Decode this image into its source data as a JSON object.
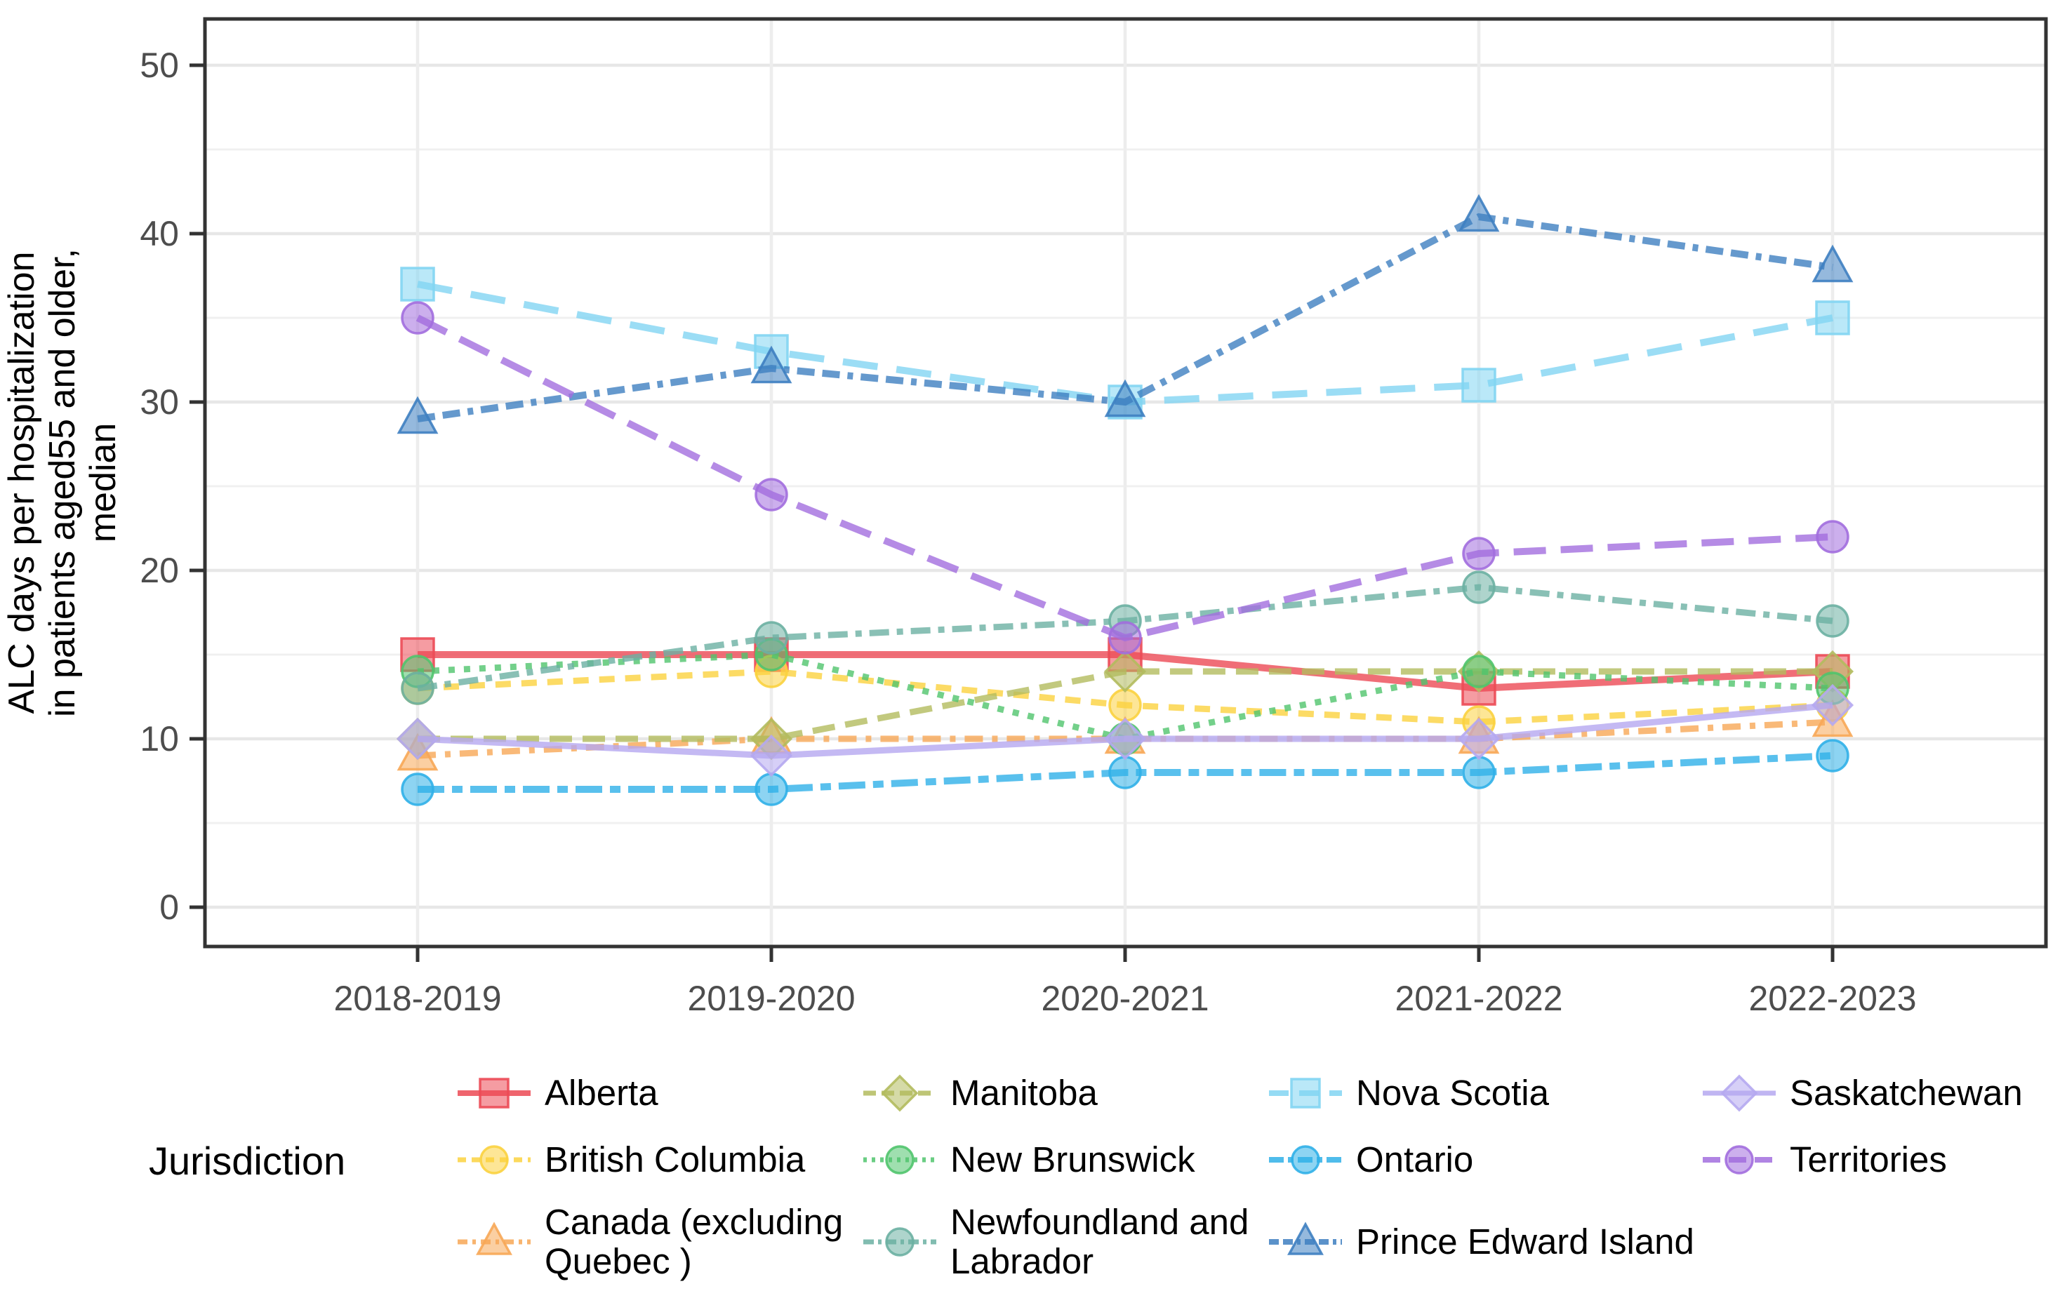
{
  "chart_data": {
    "type": "line",
    "title": "",
    "ylabel_lines": [
      "ALC days per hospitalization",
      "in patients aged55 and older,",
      "median"
    ],
    "xlabel": "",
    "legend_title": "Jurisdiction",
    "categories": [
      "2018-2019",
      "2019-2020",
      "2020-2021",
      "2021-2022",
      "2022-2023"
    ],
    "y_major_ticks": [
      0,
      10,
      20,
      30,
      40,
      50
    ],
    "y_minor_ticks": [
      5,
      15,
      25,
      35,
      45
    ],
    "ylim": [
      -2.3,
      52.8
    ],
    "grid": "on",
    "legend_position": "bottom",
    "series": [
      {
        "name": "Alberta",
        "legend_label": "Alberta",
        "color": "#ec4a55",
        "dash": "",
        "line_width": 10,
        "marker": "square",
        "values": [
          15,
          15,
          15,
          13,
          14
        ]
      },
      {
        "name": "British Columbia",
        "legend_label": "British Columbia",
        "color": "#fbd23f",
        "dash": "22 15",
        "line_width": 9,
        "marker": "circle",
        "values": [
          13,
          14,
          12,
          11,
          12
        ]
      },
      {
        "name": "Canada (excluding Quebec)",
        "legend_label": "Canada  (excluding\nQuebec )",
        "color": "#f7a756",
        "dash": "26 13 8 13",
        "line_width": 9,
        "marker": "triangle",
        "values": [
          9,
          10,
          10,
          10,
          11
        ]
      },
      {
        "name": "Manitoba",
        "legend_label": "Manitoba",
        "color": "#b3bb5e",
        "dash": "32 15",
        "line_width": 9,
        "marker": "diamond",
        "values": [
          10,
          10,
          14,
          14,
          14
        ]
      },
      {
        "name": "New Brunswick",
        "legend_label": "New Brunswick",
        "color": "#50c46d",
        "dash": "9 13",
        "line_width": 9,
        "marker": "circle",
        "values": [
          14,
          15,
          10,
          14,
          13
        ]
      },
      {
        "name": "Newfoundland and Labrador",
        "legend_label": "Newfoundland and\nLabrador",
        "color": "#6bb0a2",
        "dash": "28 11 9 11",
        "line_width": 9,
        "marker": "circle",
        "values": [
          13,
          16,
          17,
          19,
          17
        ]
      },
      {
        "name": "Nova Scotia",
        "legend_label": "Nova Scotia",
        "color": "#82d5f2",
        "dash": "50 27",
        "line_width": 10,
        "marker": "square",
        "values": [
          37,
          33,
          30,
          31,
          35
        ]
      },
      {
        "name": "Ontario",
        "legend_label": "Ontario",
        "color": "#30b0e8",
        "dash": "38 11 15 11",
        "line_width": 10,
        "marker": "circle",
        "values": [
          7,
          7,
          8,
          8,
          9
        ]
      },
      {
        "name": "Prince Edward Island",
        "legend_label": "Prince Edward Island",
        "color": "#3e7fc1",
        "dash": "25 11 25 11 8 11",
        "line_width": 10,
        "marker": "triangle",
        "values": [
          29,
          32,
          30,
          41,
          38
        ]
      },
      {
        "name": "Saskatchewan",
        "legend_label": "Saskatchewan",
        "color": "#b5a8f0",
        "dash": "",
        "line_width": 9,
        "marker": "diamond",
        "values": [
          10,
          9,
          10,
          10,
          12
        ]
      },
      {
        "name": "Territories",
        "legend_label": "Territories",
        "color": "#a26ede",
        "dash": "46 21",
        "line_width": 10,
        "marker": "circle",
        "values": [
          35,
          24.5,
          16,
          21,
          22
        ]
      }
    ]
  },
  "legend": {
    "title": "Jurisdiction"
  }
}
